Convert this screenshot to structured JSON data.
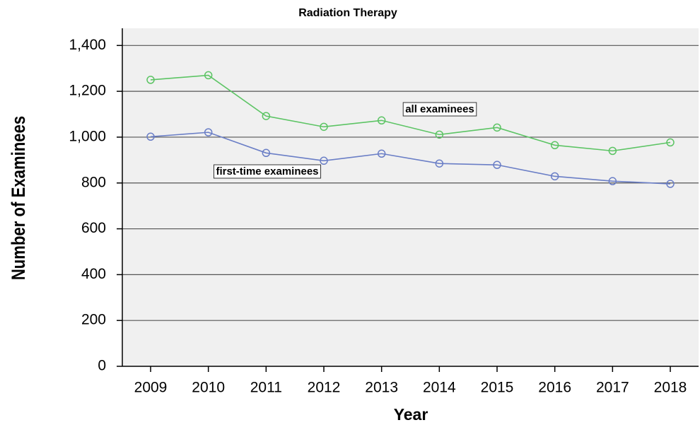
{
  "chart_data": {
    "type": "line",
    "title": "Radiation Therapy",
    "xlabel": "Year",
    "ylabel": "Number of Examinees",
    "categories": [
      "2009",
      "2010",
      "2011",
      "2012",
      "2013",
      "2014",
      "2015",
      "2016",
      "2017",
      "2018"
    ],
    "series": [
      {
        "name": "all examinees",
        "color": "#5cc464",
        "values": [
          1250,
          1270,
          1092,
          1045,
          1073,
          1011,
          1042,
          965,
          940,
          977
        ]
      },
      {
        "name": "first-time examinees",
        "color": "#6a7ec6",
        "values": [
          1002,
          1021,
          931,
          897,
          928,
          885,
          879,
          829,
          808,
          796
        ]
      }
    ],
    "ylim": [
      0,
      1475
    ],
    "yticks": [
      0,
      200,
      400,
      600,
      800,
      {
        "value": 1000,
        "label": "1,000"
      },
      {
        "value": 1200,
        "label": "1,200"
      },
      {
        "value": 1400,
        "label": "1,400"
      }
    ],
    "grid": true
  }
}
